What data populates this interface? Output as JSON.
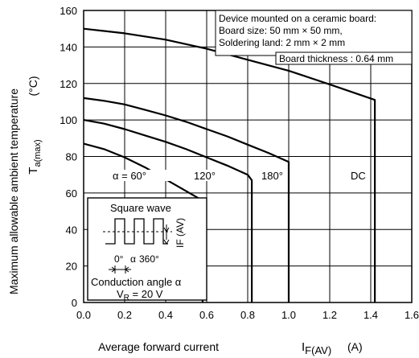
{
  "chart_data": {
    "type": "line",
    "ylabel_main": "Maximum allowable ambient temperature",
    "ylabel_symbol": "T",
    "ylabel_sub": "a(max)",
    "ylabel_unit": "(°C)",
    "xlabel_main": "Average forward current",
    "xlabel_symbol": "I",
    "xlabel_sub": "F(AV)",
    "xlabel_unit": "(A)",
    "xlim": [
      0,
      1.6
    ],
    "ylim": [
      0,
      160
    ],
    "xticks": [
      "0.0",
      "0.2",
      "0.4",
      "0.6",
      "0.8",
      "1.0",
      "1.2",
      "1.4",
      "1.6"
    ],
    "yticks": [
      "0",
      "20",
      "40",
      "60",
      "80",
      "100",
      "120",
      "140",
      "160"
    ],
    "grid": true,
    "series": [
      {
        "name": "α = 60°",
        "x": [
          0,
          0.1,
          0.2,
          0.3,
          0.4,
          0.5,
          0.57,
          0.58,
          0.58
        ],
        "y": [
          87,
          84,
          79.5,
          74,
          67.5,
          61,
          56.5,
          56.5,
          0
        ]
      },
      {
        "name": "120°",
        "x": [
          0,
          0.1,
          0.2,
          0.3,
          0.4,
          0.5,
          0.6,
          0.7,
          0.8,
          0.82,
          0.82
        ],
        "y": [
          100,
          98,
          95,
          91.5,
          88,
          84,
          79.5,
          75,
          70,
          67,
          0
        ]
      },
      {
        "name": "180°",
        "x": [
          0,
          0.1,
          0.2,
          0.3,
          0.4,
          0.5,
          0.6,
          0.7,
          0.8,
          0.9,
          1.0,
          1.0
        ],
        "y": [
          112,
          110.5,
          108.5,
          105.5,
          102.5,
          99,
          95,
          91,
          86.5,
          82,
          77,
          0
        ]
      },
      {
        "name": "DC",
        "x": [
          0,
          0.2,
          0.4,
          0.6,
          0.8,
          1.0,
          1.2,
          1.42,
          1.42
        ],
        "y": [
          150,
          147.5,
          144,
          139,
          133,
          127,
          119.5,
          111,
          0
        ]
      }
    ],
    "annotations": {
      "board_lines": [
        "Device mounted on a ceramic board:",
        "Board size: 50 mm × 50 mm,",
        "Soldering land: 2 mm × 2 mm"
      ],
      "board_thickness": "Board thickness : 0.64 mm",
      "inset_title": "Square wave",
      "inset_angle_0": "0°",
      "inset_alpha": "α",
      "inset_360": "360°",
      "inset_if_label": "IF (AV)",
      "conduction": "Conduction angle α",
      "vr_symbol": "V",
      "vr_sub": "R",
      "vr_value": " = 20 V"
    }
  }
}
